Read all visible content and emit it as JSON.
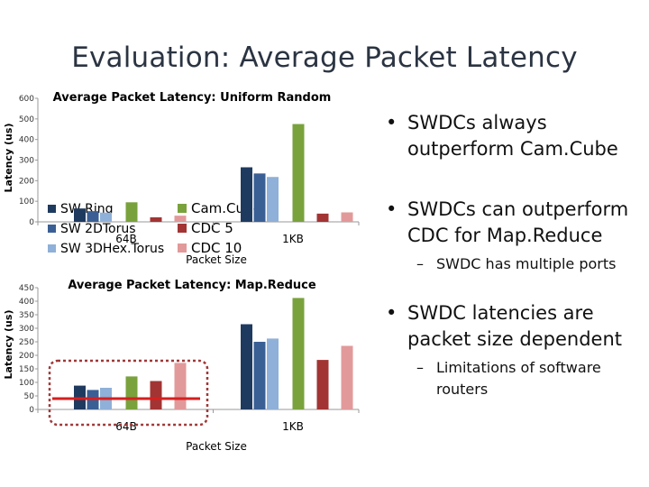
{
  "slide": {
    "title": "Evaluation: Average Packet Latency",
    "bullets": [
      {
        "text": "SWDCs always outperform Cam.Cube",
        "sub": []
      },
      {
        "text": "SWDCs can outperform CDC for Map.Reduce",
        "sub": [
          "SWDC has multiple ports"
        ]
      },
      {
        "text": "SWDC latencies are packet size dependent",
        "sub": [
          "Limitations of software routers"
        ]
      }
    ]
  },
  "colors": {
    "SW Ring": "#1f3a5f",
    "SW 2DTorus": "#3a5f95",
    "SW 3DHex.Torus": "#8fb0d8",
    "Cam.Cube": "#79a23c",
    "CDC 5": "#a23433",
    "CDC 10": "#e2999a",
    "highlight_box": "#a03838",
    "highlight_line": "#d61f1f",
    "axis": "#9a9a9a"
  },
  "chart_data": [
    {
      "type": "bar",
      "title": "Average Packet Latency: Uniform Random",
      "xlabel": "Packet Size",
      "ylabel": "Latency (us)",
      "ylim": [
        0,
        600
      ],
      "yticks": [
        "0",
        "100",
        "200",
        "300",
        "400",
        "500",
        "600"
      ],
      "categories": [
        "64B",
        "1KB"
      ],
      "legend": [
        "SW Ring",
        "SW 2DTorus",
        "SW 3DHex.Torus",
        "Cam.Cube",
        "CDC 5",
        "CDC 10"
      ],
      "series": [
        {
          "name": "SW Ring",
          "values": [
            65,
            265
          ]
        },
        {
          "name": "SW 2DTorus",
          "values": [
            52,
            235
          ]
        },
        {
          "name": "SW 3DHex.Torus",
          "values": [
            45,
            218
          ]
        },
        {
          "name": "Cam.Cube",
          "values": [
            95,
            475
          ]
        },
        {
          "name": "CDC 5",
          "values": [
            22,
            40
          ]
        },
        {
          "name": "CDC 10",
          "values": [
            30,
            46
          ]
        }
      ]
    },
    {
      "type": "bar",
      "title": "Average Packet Latency: Map.Reduce",
      "xlabel": "Packet Size",
      "ylabel": "Latency (us)",
      "ylim": [
        0,
        450
      ],
      "yticks": [
        "0",
        "50",
        "100",
        "150",
        "200",
        "250",
        "300",
        "350",
        "400",
        "450"
      ],
      "categories": [
        "64B",
        "1KB"
      ],
      "series": [
        {
          "name": "SW Ring",
          "values": [
            88,
            315
          ]
        },
        {
          "name": "SW 2DTorus",
          "values": [
            72,
            250
          ]
        },
        {
          "name": "SW 3DHex.Torus",
          "values": [
            80,
            262
          ]
        },
        {
          "name": "Cam.Cube",
          "values": [
            122,
            412
          ]
        },
        {
          "name": "CDC 5",
          "values": [
            105,
            183
          ]
        },
        {
          "name": "CDC 10",
          "values": [
            172,
            235
          ]
        }
      ],
      "annotations": {
        "highlight": "64B group",
        "reference_line": 40
      }
    }
  ]
}
